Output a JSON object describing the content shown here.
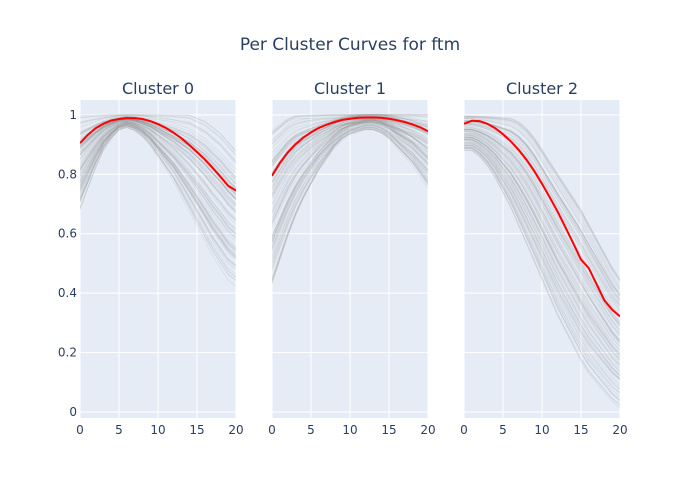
{
  "chart_data": {
    "type": "line",
    "title": "Per Cluster Curves for ftm",
    "xlim": [
      0,
      20
    ],
    "ylim": [
      -0.02,
      1.05
    ],
    "x_ticks": [
      0,
      5,
      10,
      15,
      20
    ],
    "y_ticks": [
      0,
      0.2,
      0.4,
      0.6,
      0.8,
      1
    ],
    "y_tick_labels": [
      "0",
      "0.2",
      "0.4",
      "0.6",
      "0.8",
      "1"
    ],
    "grid": true,
    "legend": "none",
    "colors": {
      "background": "#E5ECF6",
      "grid": "#ffffff",
      "mean_line": "#ff0000",
      "member_lines": "#808080",
      "text": "#2a3f5f"
    },
    "panels": [
      {
        "name": "Cluster 0",
        "mean_x": [
          0,
          1,
          2,
          3,
          4,
          5,
          6,
          7,
          8,
          9,
          10,
          11,
          12,
          13,
          14,
          15,
          16,
          17,
          18,
          19,
          20
        ],
        "mean_y": [
          0.905,
          0.933,
          0.955,
          0.97,
          0.981,
          0.986,
          0.989,
          0.989,
          0.986,
          0.979,
          0.969,
          0.956,
          0.94,
          0.921,
          0.899,
          0.875,
          0.85,
          0.822,
          0.792,
          0.761,
          0.745
        ],
        "band_upper_y": [
          1.0,
          1.0,
          1.0,
          1.0,
          1.0,
          1.0,
          1.0,
          1.0,
          1.0,
          1.0,
          1.0,
          1.0,
          1.0,
          1.0,
          1.0,
          0.99,
          0.98,
          0.96,
          0.94,
          0.91,
          0.88
        ],
        "band_lower_y": [
          0.68,
          0.75,
          0.82,
          0.88,
          0.92,
          0.95,
          0.96,
          0.95,
          0.93,
          0.9,
          0.86,
          0.82,
          0.78,
          0.73,
          0.68,
          0.63,
          0.58,
          0.53,
          0.49,
          0.45,
          0.43
        ]
      },
      {
        "name": "Cluster 1",
        "mean_x": [
          0,
          1,
          2,
          3,
          4,
          5,
          6,
          7,
          8,
          9,
          10,
          11,
          12,
          13,
          14,
          15,
          16,
          17,
          18,
          19,
          20
        ],
        "mean_y": [
          0.795,
          0.838,
          0.873,
          0.901,
          0.923,
          0.941,
          0.956,
          0.967,
          0.976,
          0.983,
          0.987,
          0.99,
          0.991,
          0.991,
          0.99,
          0.987,
          0.982,
          0.976,
          0.968,
          0.958,
          0.945
        ],
        "band_upper_y": [
          0.95,
          0.97,
          0.99,
          1.0,
          1.0,
          1.0,
          1.0,
          1.0,
          1.0,
          1.0,
          1.0,
          1.0,
          1.0,
          1.0,
          1.0,
          1.0,
          1.0,
          1.0,
          1.0,
          1.0,
          1.0
        ],
        "band_lower_y": [
          0.42,
          0.5,
          0.58,
          0.65,
          0.71,
          0.76,
          0.81,
          0.85,
          0.89,
          0.92,
          0.94,
          0.95,
          0.96,
          0.96,
          0.95,
          0.93,
          0.9,
          0.87,
          0.84,
          0.8,
          0.76
        ]
      },
      {
        "name": "Cluster 2",
        "mean_x": [
          0,
          1,
          2,
          3,
          4,
          5,
          6,
          7,
          8,
          9,
          10,
          11,
          12,
          13,
          14,
          15,
          16,
          17,
          18,
          19,
          20
        ],
        "mean_y": [
          0.97,
          0.98,
          0.979,
          0.97,
          0.955,
          0.935,
          0.911,
          0.882,
          0.849,
          0.811,
          0.768,
          0.722,
          0.674,
          0.622,
          0.568,
          0.513,
          0.484,
          0.43,
          0.376,
          0.344,
          0.322
        ],
        "band_upper_y": [
          1.0,
          1.0,
          1.0,
          1.0,
          1.0,
          1.0,
          1.0,
          0.99,
          0.97,
          0.94,
          0.9,
          0.86,
          0.82,
          0.78,
          0.74,
          0.7,
          0.65,
          0.6,
          0.55,
          0.5,
          0.46
        ],
        "band_lower_y": [
          0.88,
          0.88,
          0.86,
          0.83,
          0.79,
          0.74,
          0.69,
          0.63,
          0.57,
          0.51,
          0.45,
          0.39,
          0.33,
          0.28,
          0.23,
          0.18,
          0.14,
          0.11,
          0.08,
          0.05,
          0.03
        ]
      }
    ]
  }
}
